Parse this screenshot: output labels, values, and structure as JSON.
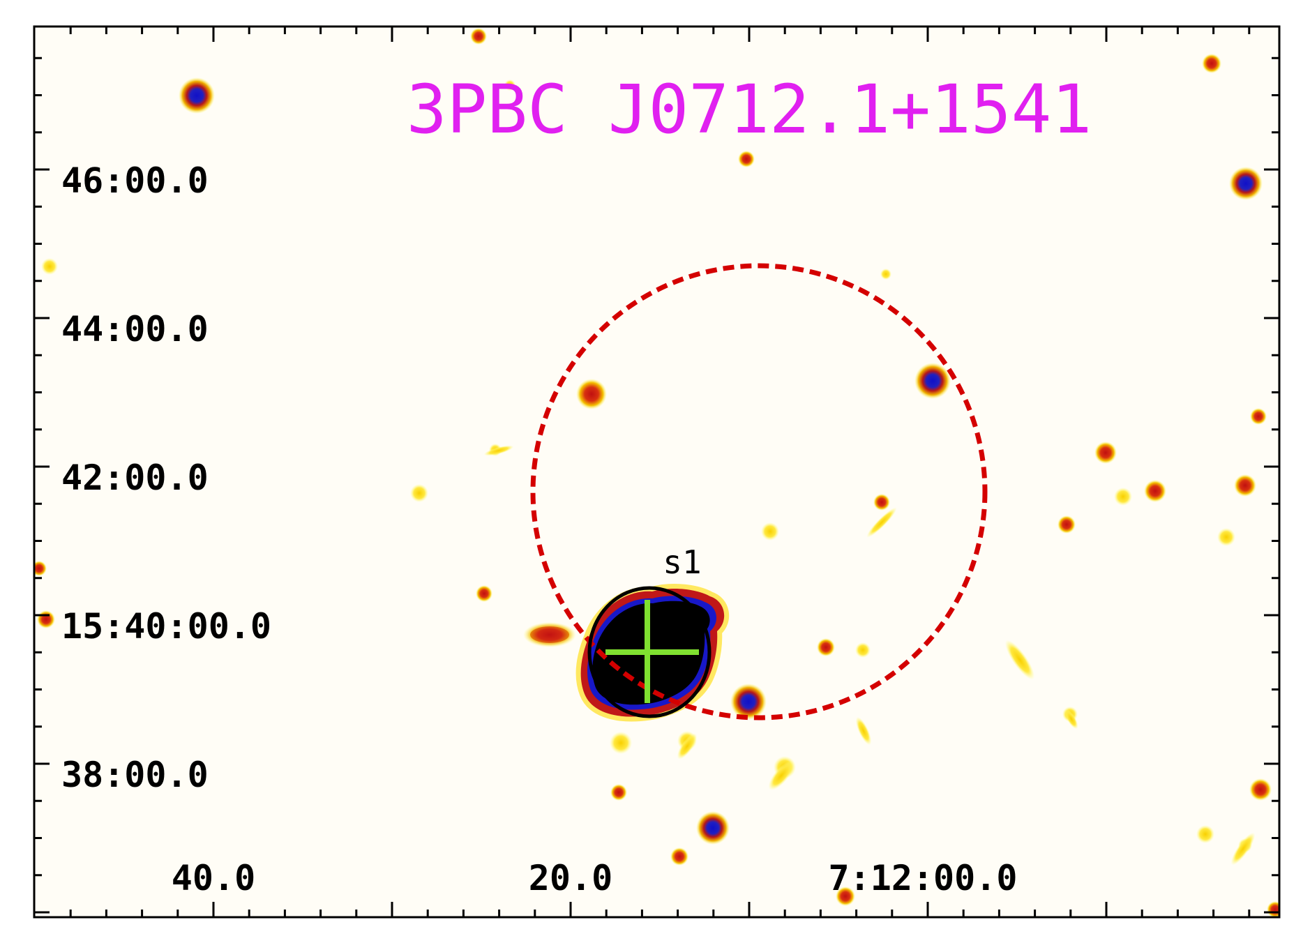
{
  "title": "3PBC J0712.1+1541",
  "source_label": "s1",
  "dec_labels": [
    "46:00.0",
    "44:00.0",
    "42:00.0",
    "15:40:00.0",
    "38:00.0"
  ],
  "ra_labels": [
    "40.0",
    "20.0",
    "7:12:00.0"
  ],
  "colors": {
    "title": "#e020f0",
    "error_circle": "#d40000",
    "crosshair": "#7fe030",
    "source_circle": "#000000",
    "axis": "#000000",
    "background": "#fffdf6"
  }
}
